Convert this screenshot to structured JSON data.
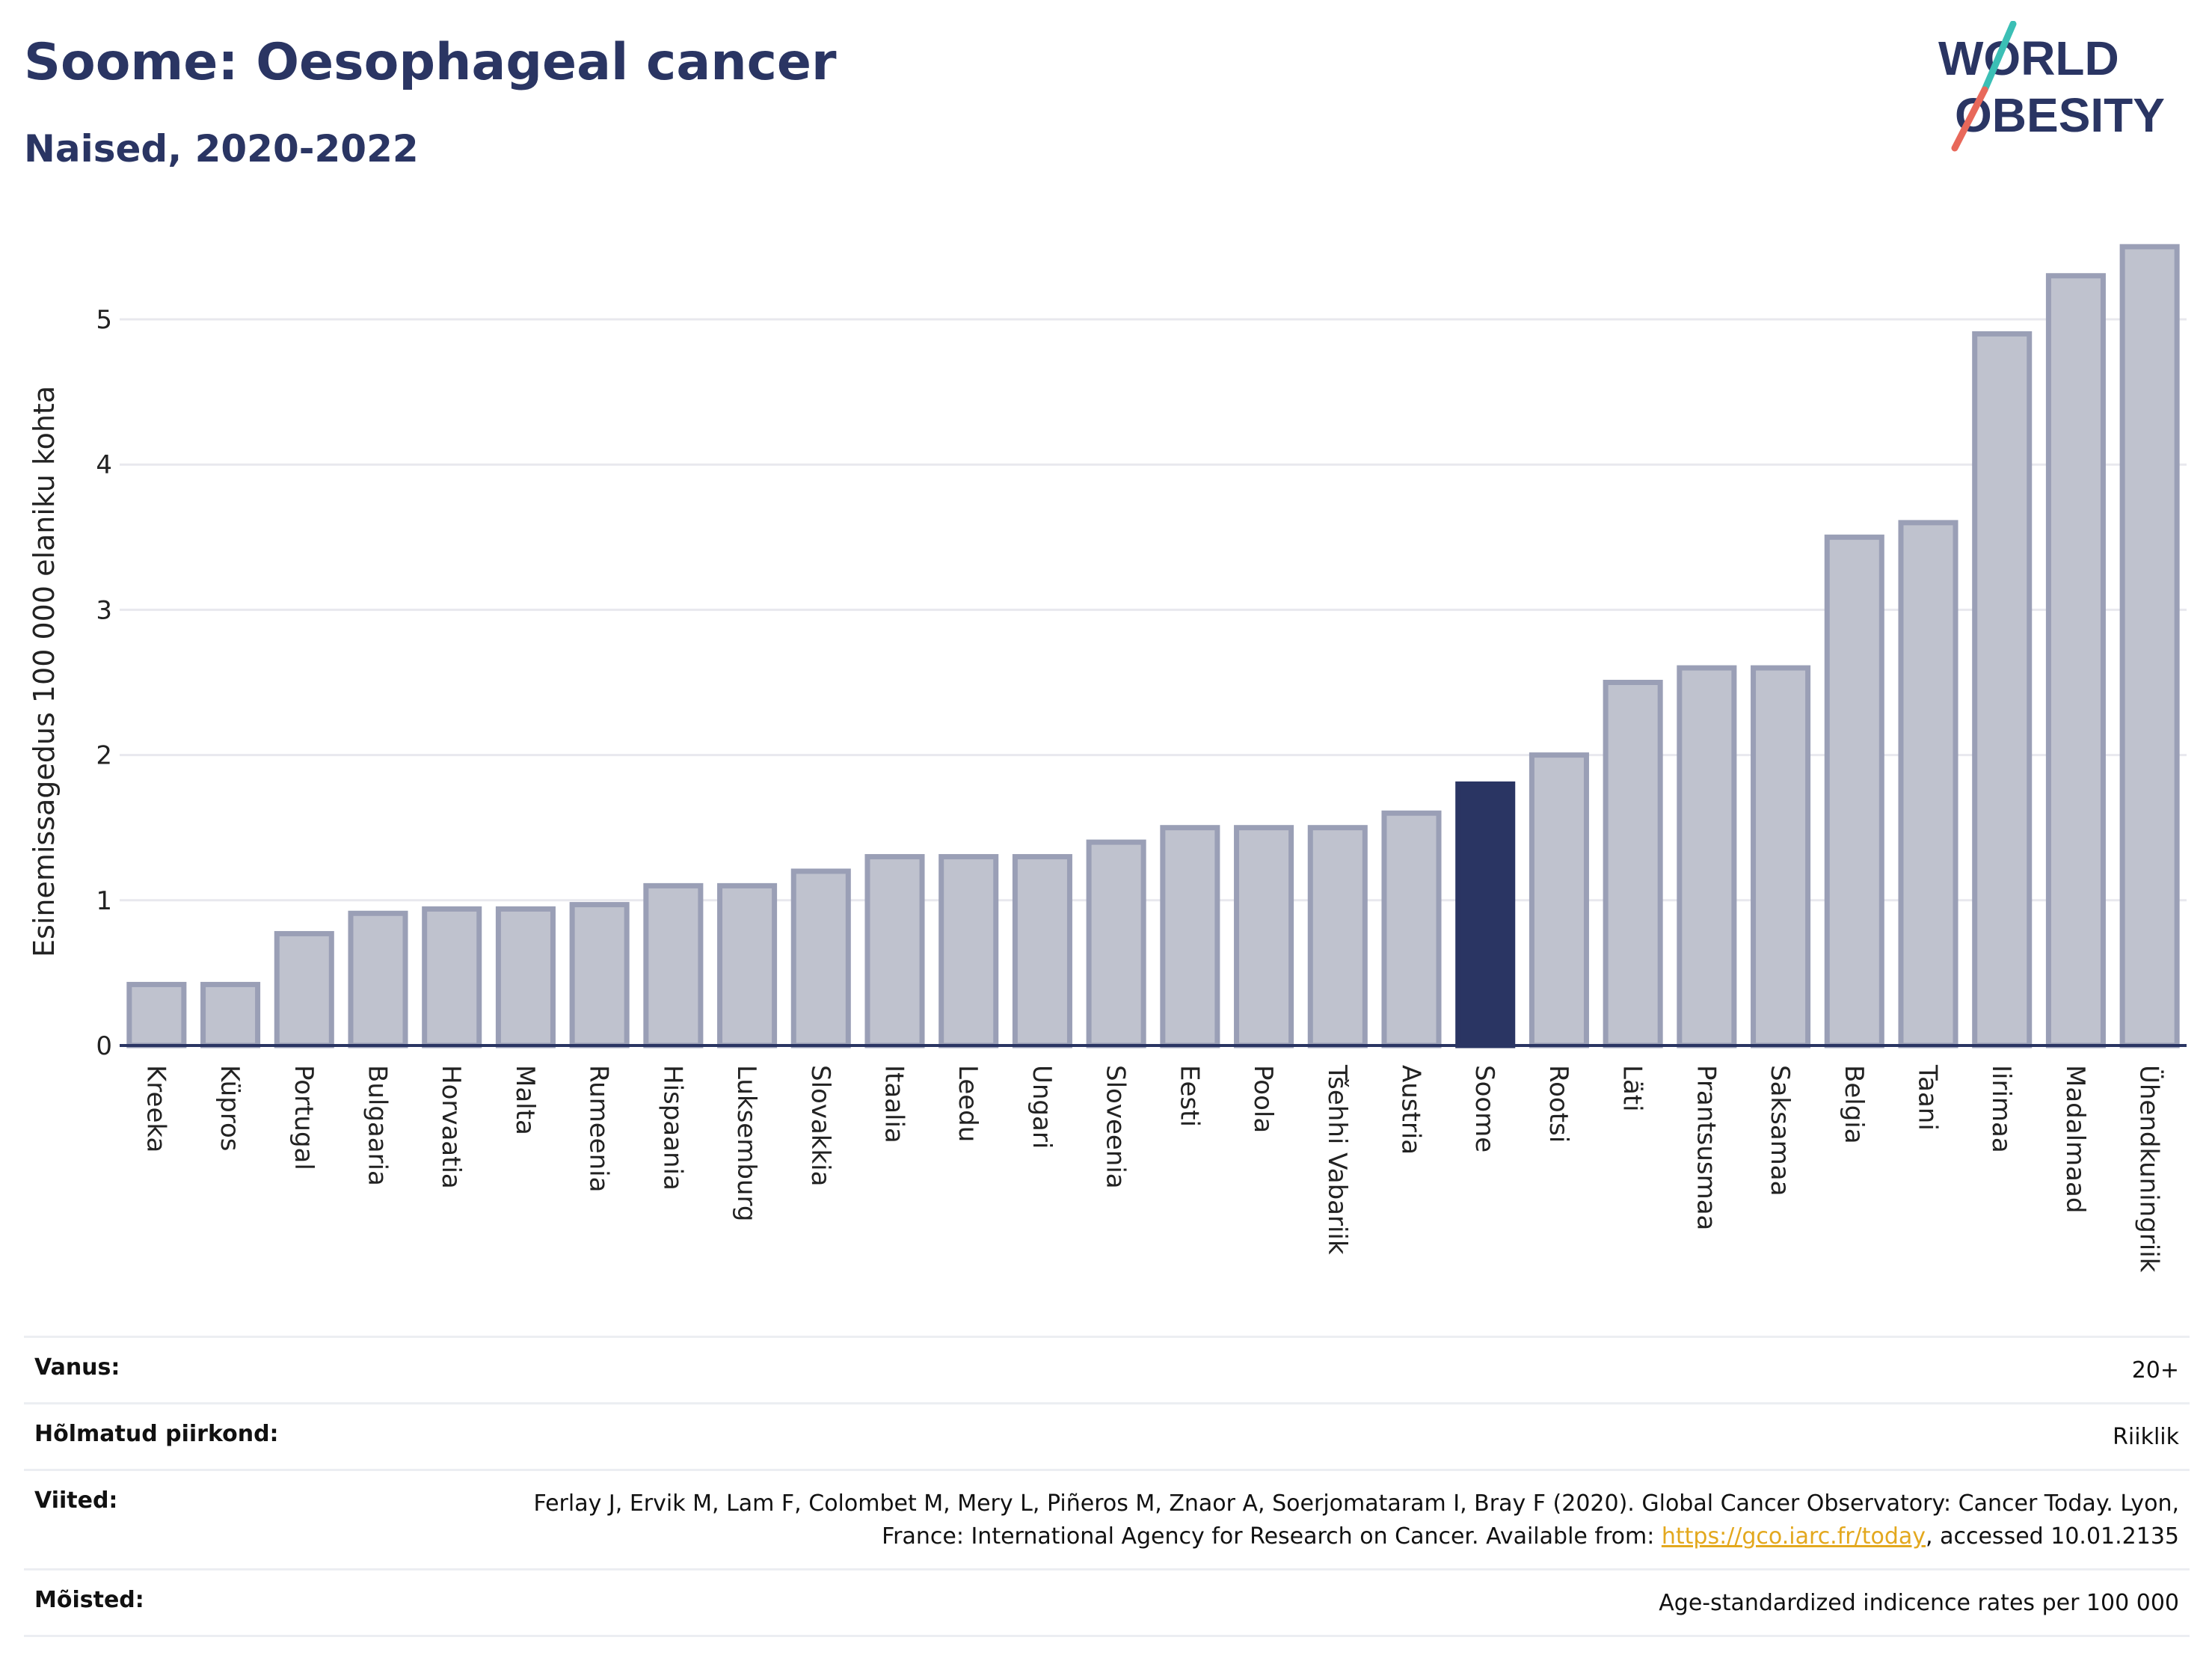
{
  "header": {
    "title": "Soome: Oesophageal cancer",
    "subtitle": "Naised, 2020-2022"
  },
  "logo": {
    "line1": "WORLD",
    "line2": "OBESITY"
  },
  "chart_data": {
    "type": "bar",
    "ylabel": "Esinemissagedus 100 000 elaniku kohta",
    "ylim": [
      0,
      5.6
    ],
    "yticks": [
      0,
      1,
      2,
      3,
      4,
      5
    ],
    "grid": true,
    "highlight": "Soome",
    "colors": {
      "bar": "#bfc2ce",
      "bar_border": "#9a9fb6",
      "highlight": "#2a3563",
      "axis": "#2a3563",
      "grid": "#e8e8ee"
    },
    "categories": [
      "Kreeka",
      "Küpros",
      "Portugal",
      "Bulgaaria",
      "Horvaatia",
      "Malta",
      "Rumeenia",
      "Hispaania",
      "Luksemburg",
      "Slovakkia",
      "Itaalia",
      "Leedu",
      "Ungari",
      "Sloveenia",
      "Eesti",
      "Poola",
      "Tšehhi Vabariik",
      "Austria",
      "Soome",
      "Rootsi",
      "Läti",
      "Prantsusmaa",
      "Saksamaa",
      "Belgia",
      "Taani",
      "Iirimaa",
      "Madalmaad",
      "Ühendkuningriik"
    ],
    "values": [
      0.42,
      0.42,
      0.77,
      0.91,
      0.94,
      0.94,
      0.97,
      1.1,
      1.1,
      1.2,
      1.3,
      1.3,
      1.3,
      1.4,
      1.5,
      1.5,
      1.5,
      1.6,
      1.8,
      2.0,
      2.5,
      2.6,
      2.6,
      3.5,
      3.6,
      4.9,
      5.3,
      5.5
    ]
  },
  "meta": [
    {
      "key": "Vanus:",
      "value": "20+"
    },
    {
      "key": "Hõlmatud piirkond:",
      "value": "Riiklik"
    },
    {
      "key": "Viited:",
      "value_pre": "Ferlay J, Ervik M, Lam F, Colombet M, Mery L, Piñeros M, Znaor A, Soerjomataram I, Bray F (2020). Global Cancer Observatory: Cancer Today. Lyon, France: International Agency for Research on Cancer. Available from: ",
      "link": "https://gco.iarc.fr/today",
      "value_post": ", accessed 10.01.2135"
    },
    {
      "key": "Mõisted:",
      "value": "Age-standardized indicence rates per 100 000"
    }
  ]
}
